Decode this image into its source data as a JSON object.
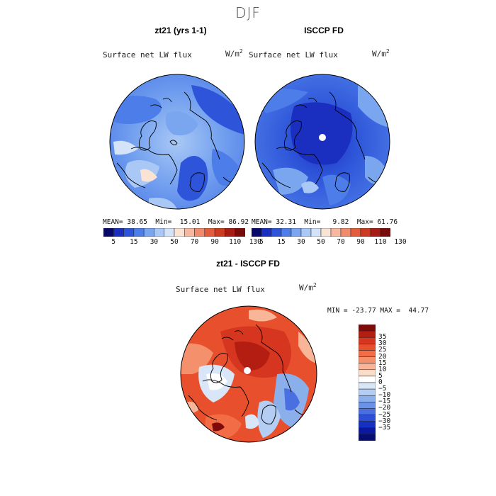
{
  "figure": {
    "season_title": "DJF"
  },
  "panel_a": {
    "title": "zt21 (yrs 1-1)",
    "variable": "Surface net LW flux",
    "units_base": "W/m",
    "units_exp": "2",
    "mean_label": "MEAN=",
    "mean": "38.65",
    "min_label": "Min=",
    "min": "15.01",
    "max_label": "Max=",
    "max": "86.92"
  },
  "panel_b": {
    "title": "ISCCP FD",
    "variable": "Surface net LW flux",
    "units_base": "W/m",
    "units_exp": "2",
    "mean_label": "MEAN=",
    "mean": "32.31",
    "min_label": "Min=",
    "min": "9.82",
    "max_label": "Max=",
    "max": "61.76"
  },
  "panel_c": {
    "title": "zt21 - ISCCP FD",
    "variable": "Surface net LW flux",
    "units_base": "W/m",
    "units_exp": "2",
    "min_label": "MIN =",
    "min": "-23.77",
    "max_label": "MAX =",
    "max": "44.77"
  },
  "colorbar_abs": {
    "tick_labels": [
      "5",
      "15",
      "30",
      "50",
      "70",
      "90",
      "110",
      "130"
    ],
    "colors": [
      "#08086b",
      "#1a2fbf",
      "#2e55d9",
      "#4d7de8",
      "#7aa6f0",
      "#a9c8f5",
      "#d4e3f8",
      "#fbe3d4",
      "#f6b79e",
      "#f08a6d",
      "#e45c3e",
      "#cc3a22",
      "#a61b12",
      "#7a0b0b"
    ]
  },
  "colorbar_diff": {
    "tick_labels": [
      "35",
      "30",
      "25",
      "20",
      "15",
      "10",
      "5",
      "0",
      "−5",
      "−10",
      "−15",
      "−20",
      "−25",
      "−30",
      "−35"
    ],
    "colors": [
      "#7f0a0a",
      "#b31d12",
      "#d6361f",
      "#e8502d",
      "#f26d45",
      "#f5906c",
      "#f8b598",
      "#fbdcc8",
      "#ffffff",
      "#d9e6f7",
      "#b4cdf2",
      "#8aafeb",
      "#6b92e6",
      "#4a6fe0",
      "#2d4fd6",
      "#1630c4",
      "#0a18a0",
      "#060d70"
    ]
  },
  "chart_data": [
    {
      "type": "heatmap",
      "projection": "north polar stereographic",
      "title": "zt21 (yrs 1-1)",
      "variable": "Surface net LW flux",
      "units": "W/m^2",
      "stats": {
        "mean": 38.65,
        "min": 15.01,
        "max": 86.92
      },
      "contour_levels": [
        5,
        15,
        30,
        50,
        70,
        90,
        110,
        130
      ]
    },
    {
      "type": "heatmap",
      "projection": "north polar stereographic",
      "title": "ISCCP FD",
      "variable": "Surface net LW flux",
      "units": "W/m^2",
      "stats": {
        "mean": 32.31,
        "min": 9.82,
        "max": 61.76
      },
      "contour_levels": [
        5,
        15,
        30,
        50,
        70,
        90,
        110,
        130
      ]
    },
    {
      "type": "heatmap",
      "projection": "north polar stereographic",
      "title": "zt21 - ISCCP FD",
      "variable": "Surface net LW flux",
      "units": "W/m^2",
      "stats": {
        "min": -23.77,
        "max": 44.77
      },
      "contour_levels": [
        -35,
        -30,
        -25,
        -20,
        -15,
        -10,
        -5,
        0,
        5,
        10,
        15,
        20,
        25,
        30,
        35
      ]
    }
  ]
}
